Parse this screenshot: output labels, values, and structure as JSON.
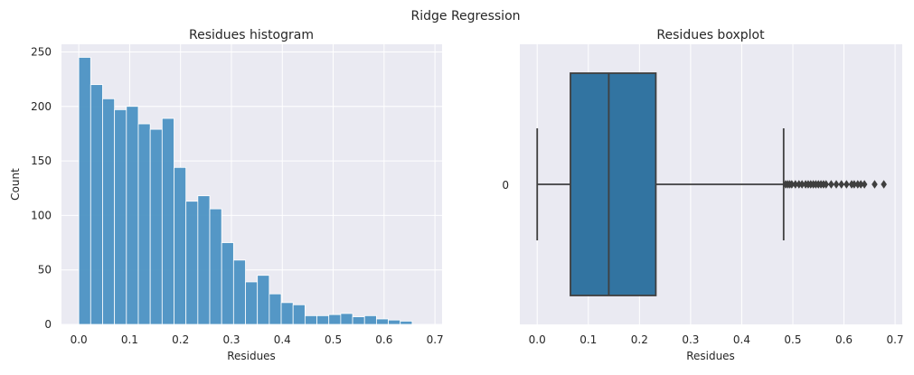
{
  "figure": {
    "suptitle": "Ridge Regression"
  },
  "chart_data": [
    {
      "type": "bar",
      "title": "Residues histogram",
      "xlabel": "Residues",
      "ylabel": "Count",
      "bin_width": 0.0234,
      "x_start": 0.0,
      "counts": [
        245,
        220,
        207,
        197,
        200,
        184,
        179,
        189,
        144,
        113,
        118,
        106,
        75,
        59,
        39,
        45,
        28,
        20,
        18,
        8,
        8,
        9,
        10,
        7,
        8,
        5,
        4,
        3
      ],
      "xlim": [
        -0.034,
        0.714
      ],
      "ylim": [
        0,
        257
      ],
      "xticks": [
        0.0,
        0.1,
        0.2,
        0.3,
        0.4,
        0.5,
        0.6,
        0.7
      ],
      "xtick_labels": [
        "0.0",
        "0.1",
        "0.2",
        "0.3",
        "0.4",
        "0.5",
        "0.6",
        "0.7"
      ],
      "yticks": [
        0,
        50,
        100,
        150,
        200,
        250
      ],
      "ytick_labels": [
        "0",
        "50",
        "100",
        "150",
        "200",
        "250"
      ],
      "color": "#4c92c3",
      "grid": true
    },
    {
      "type": "boxplot",
      "title": "Residues boxplot",
      "xlabel": "Residues",
      "category": "0",
      "whisker_low": 0.0,
      "q1": 0.065,
      "median": 0.14,
      "q3": 0.232,
      "whisker_high": 0.482,
      "outliers": [
        0.486,
        0.49,
        0.494,
        0.498,
        0.505,
        0.512,
        0.518,
        0.525,
        0.53,
        0.535,
        0.54,
        0.545,
        0.55,
        0.555,
        0.56,
        0.565,
        0.575,
        0.585,
        0.595,
        0.605,
        0.615,
        0.62,
        0.627,
        0.633,
        0.64,
        0.66,
        0.678
      ],
      "xlim": [
        -0.034,
        0.714
      ],
      "xticks": [
        0.0,
        0.1,
        0.2,
        0.3,
        0.4,
        0.5,
        0.6,
        0.7
      ],
      "xtick_labels": [
        "0.0",
        "0.1",
        "0.2",
        "0.3",
        "0.4",
        "0.5",
        "0.6",
        "0.7"
      ],
      "color": "#3274a1",
      "grid": true
    }
  ]
}
